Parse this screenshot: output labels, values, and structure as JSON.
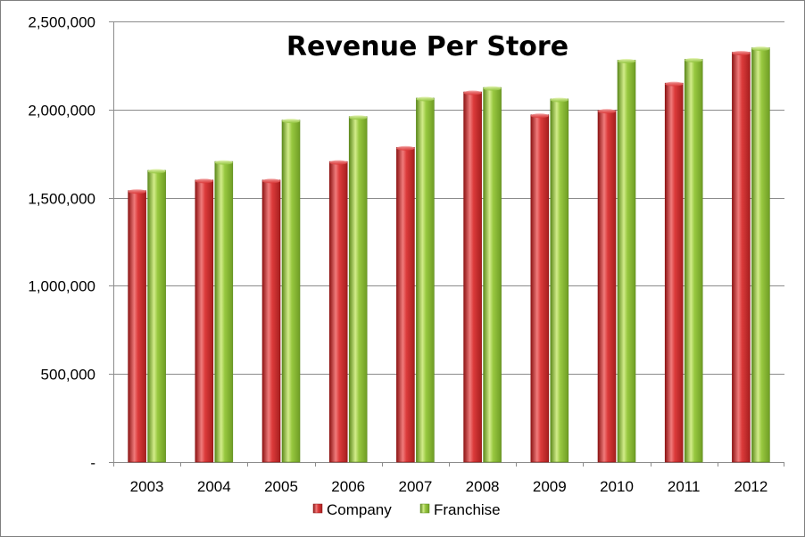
{
  "chart_data": {
    "type": "bar",
    "title": "Revenue Per Store",
    "xlabel": "",
    "ylabel": "",
    "categories": [
      "2003",
      "2004",
      "2005",
      "2006",
      "2007",
      "2008",
      "2009",
      "2010",
      "2011",
      "2012"
    ],
    "series": [
      {
        "name": "Company",
        "color": "#d93434",
        "values": [
          1540000,
          1600000,
          1600000,
          1705000,
          1785000,
          2100000,
          1970000,
          1995000,
          2150000,
          2325000
        ]
      },
      {
        "name": "Franchise",
        "color": "#8fc23a",
        "values": [
          1655000,
          1705000,
          1940000,
          1960000,
          2065000,
          2125000,
          2060000,
          2280000,
          2285000,
          2350000
        ]
      }
    ],
    "ylim": [
      0,
      2500000
    ],
    "yticks": [
      0,
      500000,
      1000000,
      1500000,
      2000000,
      2500000
    ],
    "ytick_labels": [
      "-",
      "500,000",
      "1,000,000",
      "1,500,000",
      "2,000,000",
      "2,500,000"
    ],
    "grid": true,
    "legend_position": "bottom"
  }
}
